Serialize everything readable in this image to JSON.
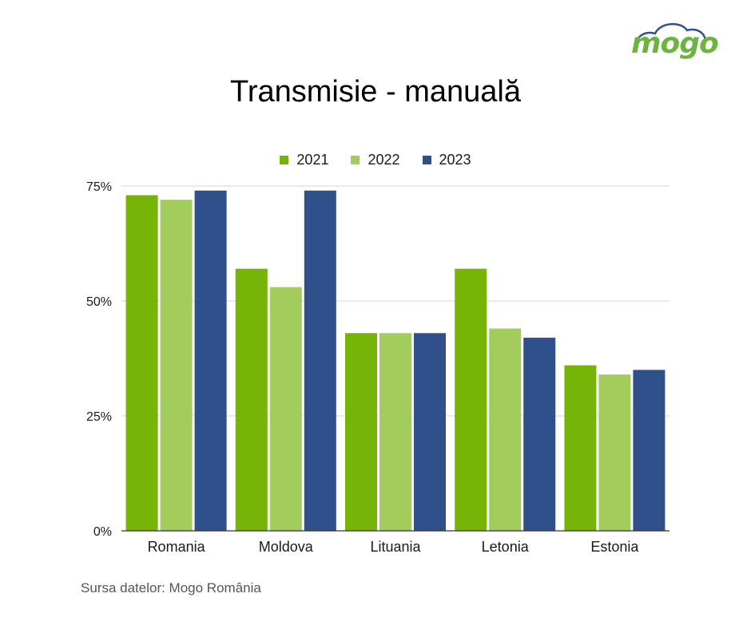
{
  "brand": {
    "logo_text": "mogo",
    "logo_color": "#6db33f"
  },
  "source_text": "Sursa datelor:  Mogo România",
  "chart_data": {
    "type": "bar",
    "title": "Transmisie - manuală",
    "categories": [
      "Romania",
      "Moldova",
      "Lituania",
      "Letonia",
      "Estonia"
    ],
    "series": [
      {
        "name": "2021",
        "color": "#76b407",
        "values": [
          73,
          57,
          43,
          57,
          36
        ]
      },
      {
        "name": "2022",
        "color": "#a2cc5c",
        "values": [
          72,
          53,
          43,
          44,
          34
        ]
      },
      {
        "name": "2023",
        "color": "#2f508a",
        "values": [
          74,
          74,
          43,
          42,
          35
        ]
      }
    ],
    "yticks": [
      "0%",
      "25%",
      "50%",
      "75%"
    ],
    "ylim": [
      0,
      75
    ],
    "xlabel": "",
    "ylabel": "",
    "grid": true,
    "legend_position": "top-center"
  }
}
